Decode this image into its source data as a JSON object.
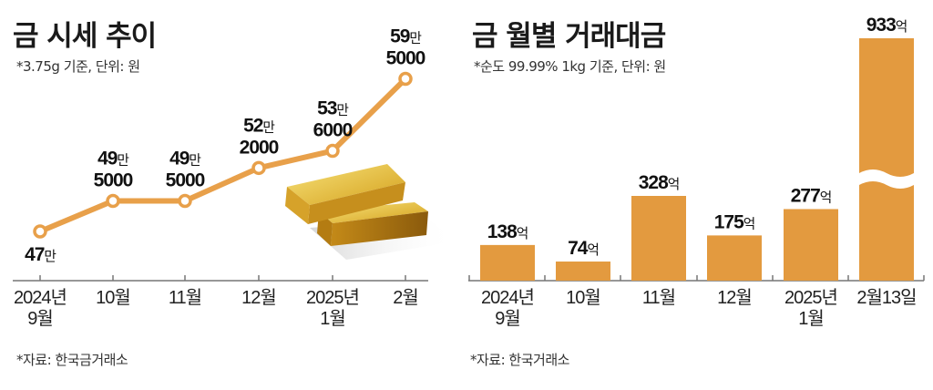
{
  "chart_data": [
    {
      "type": "line",
      "title": "금 시세 추이",
      "subtitle": "*3.75g 기준, 단위: 원",
      "source": "*자료: 한국금거래소",
      "categories": [
        [
          "2024년",
          "9월"
        ],
        [
          "10월"
        ],
        [
          "11월"
        ],
        [
          "12월"
        ],
        [
          "2025년",
          "1월"
        ],
        [
          "2월"
        ]
      ],
      "values": [
        470000,
        495000,
        495000,
        522000,
        536000,
        595000
      ],
      "value_labels": [
        {
          "main": "47",
          "unit": "만",
          "sub": ""
        },
        {
          "main": "49",
          "unit": "만",
          "sub": "5000"
        },
        {
          "main": "49",
          "unit": "만",
          "sub": "5000"
        },
        {
          "main": "52",
          "unit": "만",
          "sub": "2000"
        },
        {
          "main": "53",
          "unit": "만",
          "sub": "6000"
        },
        {
          "main": "59",
          "unit": "만",
          "sub": "5000"
        }
      ],
      "color": "#e8a04a",
      "grid": false
    },
    {
      "type": "bar",
      "title": "금 월별 거래대금",
      "subtitle": "*순도 99.99% 1kg 기준, 단위: 원",
      "source": "*자료: 한국거래소",
      "categories": [
        [
          "2024년",
          "9월"
        ],
        [
          "10월"
        ],
        [
          "11월"
        ],
        [
          "12월"
        ],
        [
          "2025년",
          "1월"
        ],
        [
          "2월13일"
        ]
      ],
      "values": [
        138,
        74,
        328,
        175,
        277,
        933
      ],
      "value_labels": [
        {
          "main": "138",
          "unit": "억"
        },
        {
          "main": "74",
          "unit": "억"
        },
        {
          "main": "328",
          "unit": "억"
        },
        {
          "main": "175",
          "unit": "억"
        },
        {
          "main": "277",
          "unit": "억"
        },
        {
          "main": "933",
          "unit": "억"
        }
      ],
      "axis_break_on_last_bar": true,
      "color": "#e39a3f",
      "grid": false
    }
  ]
}
